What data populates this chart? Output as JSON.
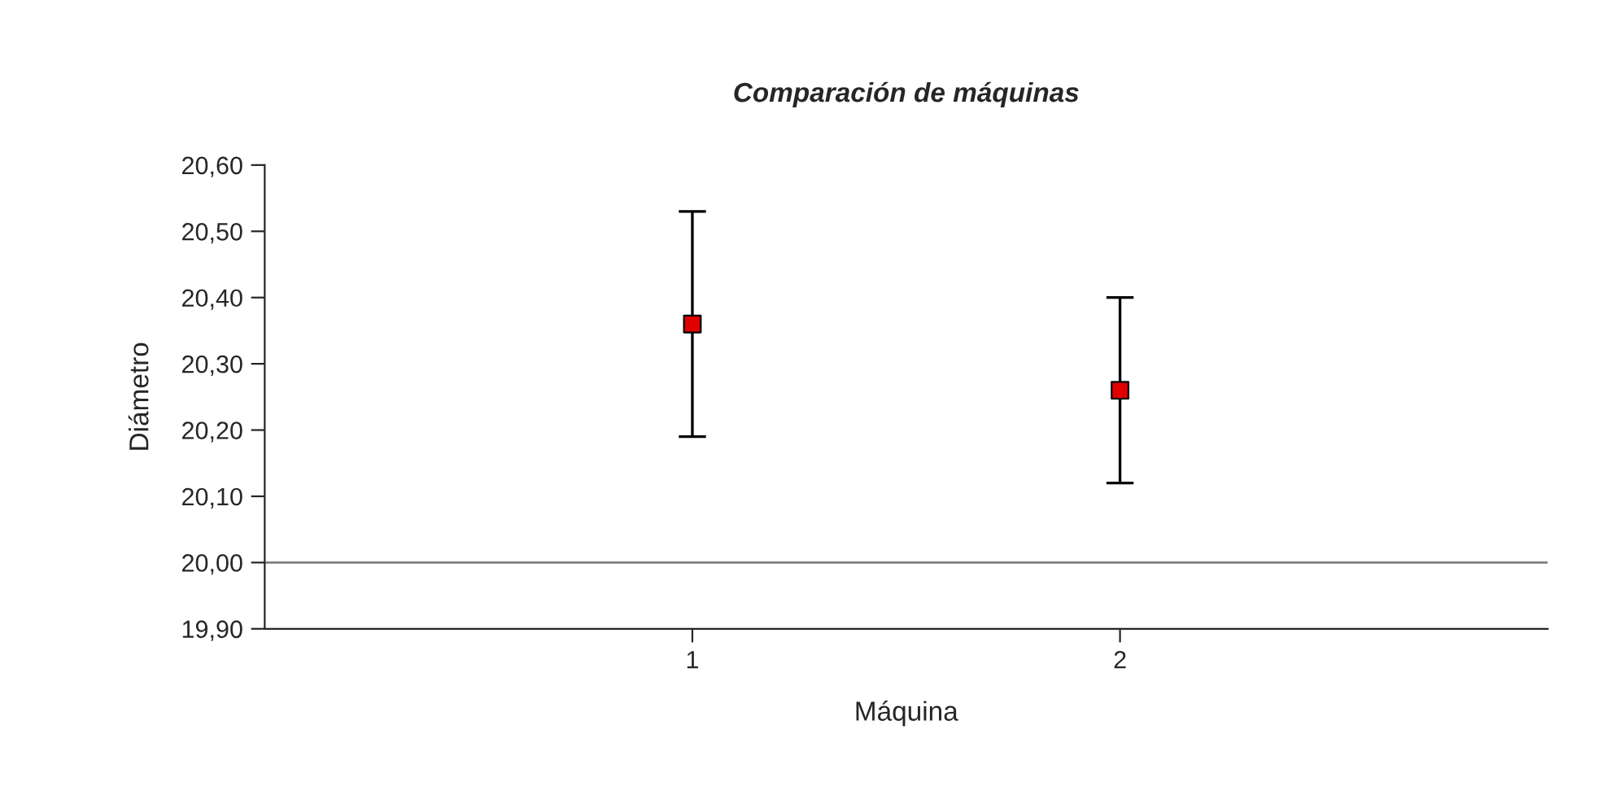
{
  "chart_data": {
    "type": "scatter",
    "title": "Comparación de máquinas",
    "xlabel": "Máquina",
    "ylabel": "Diámetro",
    "categories": [
      "1",
      "2"
    ],
    "series": [
      {
        "color": "#e00000",
        "values": [
          20.36,
          20.26
        ],
        "errors": [
          0.17,
          0.14
        ]
      }
    ],
    "marker": "square",
    "ylim": [
      19.9,
      20.6
    ],
    "yticks": [
      {
        "value": 19.9,
        "label": "19,90"
      },
      {
        "value": 20.0,
        "label": "20,00"
      },
      {
        "value": 20.1,
        "label": "20,10"
      },
      {
        "value": 20.2,
        "label": "20,20"
      },
      {
        "value": 20.3,
        "label": "20,30"
      },
      {
        "value": 20.4,
        "label": "20,40"
      },
      {
        "value": 20.5,
        "label": "20,50"
      },
      {
        "value": 20.6,
        "label": "20,60"
      }
    ],
    "ref_lines": [
      {
        "axis": "y",
        "value": 20.0,
        "color": "#808080"
      }
    ],
    "grid": false,
    "legend": false
  }
}
